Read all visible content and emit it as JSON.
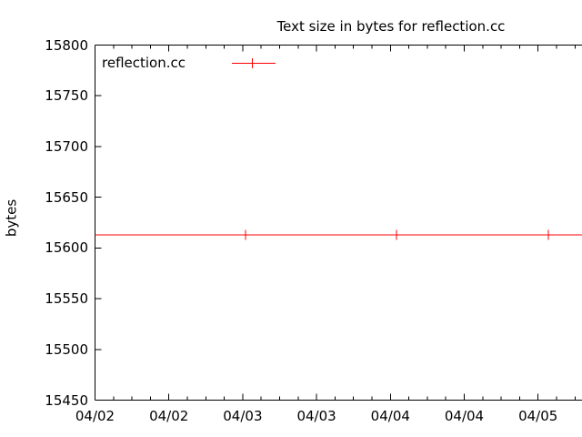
{
  "chart_data": {
    "type": "line",
    "title": "Text size in bytes for reflection.cc",
    "ylabel": "bytes",
    "xlabel": "",
    "ylim": [
      15450,
      15800
    ],
    "y_ticks": [
      15800,
      15750,
      15700,
      15650,
      15600,
      15550,
      15500,
      15450
    ],
    "x_tick_labels": [
      "04/02",
      "04/02",
      "04/03",
      "04/03",
      "04/04",
      "04/04",
      "04/05"
    ],
    "x_tick_interval": "12 hours",
    "x_minor_ticks_per_major_interval": 3,
    "grid": false,
    "legend_position": "top-left-inside",
    "axis_color": "#000000",
    "background_color": "#ffffff",
    "series": [
      {
        "name": "reflection.cc",
        "color": "#ff0000",
        "marker": "plus",
        "constant_value_bytes": 15613,
        "line_extends_days_from_axis_start": [
          0.0,
          3.3
        ],
        "points_days_from_axis_start": [
          1.02,
          2.04,
          3.07
        ],
        "points_bytes": [
          15613,
          15613,
          15613
        ]
      }
    ]
  }
}
